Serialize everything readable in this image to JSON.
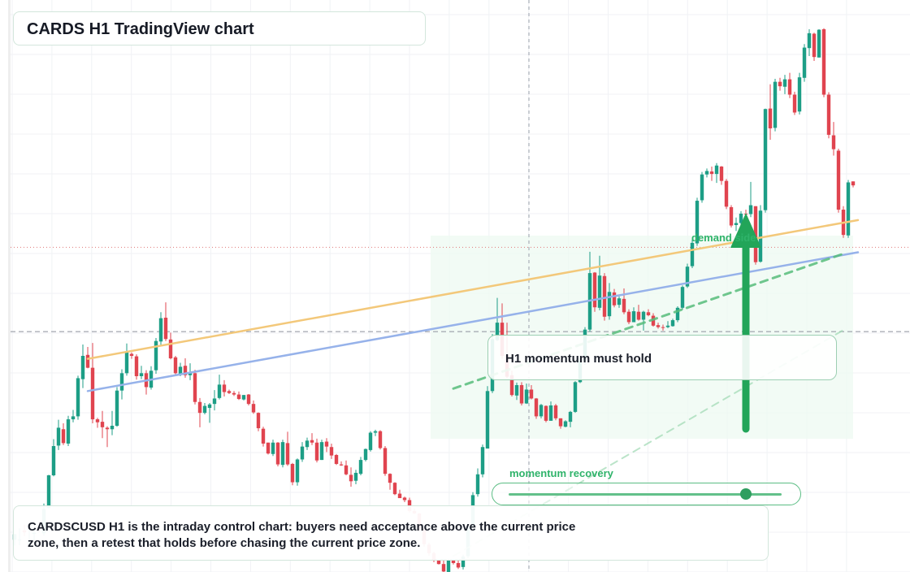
{
  "header": {
    "title": "CARDS H1 TradingView chart"
  },
  "callout": {
    "text": "H1 momentum must hold"
  },
  "summary": {
    "text": "CARDSCUSD H1 is the intraday control chart: buyers need acceptance above the current price zone, then a retest that holds before chasing the current price zone."
  },
  "labels": {
    "demand": "demand side",
    "momentum": "momentum recovery"
  },
  "momentum_slider": {
    "level": 0.87
  },
  "colors": {
    "up": "#1d9e86",
    "down": "#e0444f",
    "orange_line": "#f3c87a",
    "blue_line": "#96b2ea",
    "green_dash": "#57bd7c",
    "arrow": "#22a559"
  },
  "chart_data": {
    "type": "candlestick",
    "symbol": "CARDSCUSD",
    "timeframe": "H1",
    "grid": true,
    "price_range": [
      0,
      100
    ],
    "current_price_level": 49,
    "reference_level": 66,
    "ohlc": [
      [
        7.0,
        8.2,
        5.8,
        8.1
      ],
      [
        6.9,
        9.3,
        5.9,
        7.0
      ],
      [
        8.9,
        10.0,
        7.7,
        8.5
      ],
      [
        6.2,
        10.4,
        5.9,
        6.5
      ],
      [
        8.2,
        9.1,
        6.1,
        8.4
      ],
      [
        9.6,
        10.4,
        8.5,
        9.2
      ],
      [
        8.3,
        14.3,
        7.8,
        13.2
      ],
      [
        13.4,
        20.1,
        13.3,
        20.0
      ],
      [
        20.0,
        27.3,
        19.8,
        25.9
      ],
      [
        26.0,
        31.2,
        25.1,
        29.6
      ],
      [
        29.3,
        30.5,
        26.1,
        26.5
      ],
      [
        26.4,
        32.0,
        25.9,
        31.3
      ],
      [
        31.3,
        33.2,
        30.7,
        31.9
      ],
      [
        31.9,
        40.1,
        31.2,
        39.6
      ],
      [
        39.4,
        46.4,
        37.6,
        44.1
      ],
      [
        44.3,
        45.9,
        41.6,
        41.7
      ],
      [
        41.7,
        46.7,
        30.5,
        31.3
      ],
      [
        31.3,
        31.6,
        29.6,
        30.7
      ],
      [
        30.8,
        33.0,
        27.5,
        29.7
      ],
      [
        29.6,
        29.9,
        25.7,
        29.3
      ],
      [
        29.3,
        33.0,
        28.1,
        30.0
      ],
      [
        30.0,
        37.8,
        29.8,
        37.1
      ],
      [
        37.1,
        41.4,
        35.3,
        40.6
      ],
      [
        40.6,
        46.6,
        40.1,
        44.8
      ],
      [
        44.5,
        44.8,
        43.5,
        44.1
      ],
      [
        44.0,
        44.4,
        39.3,
        40.0
      ],
      [
        40.0,
        42.1,
        39.4,
        40.6
      ],
      [
        40.6,
        41.2,
        36.3,
        37.8
      ],
      [
        37.7,
        42.0,
        37.3,
        41.1
      ],
      [
        41.2,
        47.7,
        40.5,
        47.1
      ],
      [
        47.0,
        52.9,
        46.2,
        51.7
      ],
      [
        51.8,
        54.9,
        47.1,
        47.5
      ],
      [
        47.4,
        48.8,
        43.4,
        43.6
      ],
      [
        43.8,
        44.1,
        40.1,
        40.6
      ],
      [
        40.5,
        42.7,
        40.0,
        41.9
      ],
      [
        42.1,
        43.6,
        39.7,
        40.2
      ],
      [
        40.2,
        42.6,
        39.2,
        40.7
      ],
      [
        40.6,
        41.3,
        34.3,
        34.8
      ],
      [
        34.8,
        35.6,
        29.7,
        32.6
      ],
      [
        32.6,
        34.6,
        32.3,
        34.0
      ],
      [
        33.6,
        34.6,
        30.6,
        34.3
      ],
      [
        34.4,
        37.2,
        33.1,
        35.5
      ],
      [
        35.6,
        40.3,
        35.3,
        38.3
      ],
      [
        38.3,
        39.2,
        35.9,
        36.8
      ],
      [
        37.0,
        37.3,
        36.4,
        36.6
      ],
      [
        36.6,
        37.0,
        36.0,
        36.3
      ],
      [
        36.3,
        36.9,
        35.2,
        35.4
      ],
      [
        35.3,
        36.2,
        35.1,
        36.2
      ],
      [
        36.3,
        36.4,
        34.1,
        34.4
      ],
      [
        34.4,
        35.1,
        32.4,
        32.7
      ],
      [
        32.6,
        32.7,
        28.9,
        29.5
      ],
      [
        29.4,
        29.8,
        25.8,
        26.4
      ],
      [
        26.6,
        26.6,
        24.2,
        24.4
      ],
      [
        24.3,
        27.2,
        23.9,
        26.6
      ],
      [
        26.6,
        26.7,
        21.8,
        22.2
      ],
      [
        22.1,
        27.2,
        21.6,
        26.7
      ],
      [
        26.5,
        28.8,
        21.9,
        22.2
      ],
      [
        22.3,
        22.5,
        18.0,
        18.6
      ],
      [
        18.6,
        23.4,
        17.9,
        23.2
      ],
      [
        23.2,
        26.7,
        22.7,
        25.8
      ],
      [
        25.7,
        27.6,
        25.1,
        27.0
      ],
      [
        27.1,
        28.5,
        26.1,
        26.6
      ],
      [
        26.6,
        27.4,
        22.6,
        23.0
      ],
      [
        23.1,
        27.2,
        23.1,
        26.7
      ],
      [
        26.8,
        27.5,
        24.7,
        25.8
      ],
      [
        25.7,
        26.4,
        23.3,
        24.0
      ],
      [
        24.1,
        24.3,
        22.1,
        22.3
      ],
      [
        22.2,
        22.8,
        21.9,
        22.0
      ],
      [
        22.0,
        23.0,
        20.0,
        20.2
      ],
      [
        20.1,
        21.6,
        17.7,
        18.8
      ],
      [
        18.9,
        21.1,
        18.2,
        20.5
      ],
      [
        20.3,
        23.7,
        20.0,
        23.1
      ],
      [
        23.1,
        25.4,
        22.8,
        25.3
      ],
      [
        25.1,
        28.9,
        24.8,
        28.6
      ],
      [
        28.6,
        29.2,
        27.9,
        28.9
      ],
      [
        28.9,
        29.1,
        25.2,
        25.5
      ],
      [
        25.5,
        25.9,
        19.9,
        20.3
      ],
      [
        20.3,
        20.4,
        17.1,
        18.5
      ],
      [
        18.5,
        18.6,
        16.0,
        16.2
      ],
      [
        16.3,
        17.1,
        15.4,
        15.4
      ],
      [
        15.5,
        15.7,
        14.6,
        15.0
      ],
      [
        15.0,
        15.5,
        12.5,
        12.8
      ],
      [
        12.8,
        13.3,
        12.2,
        12.3
      ],
      [
        12.3,
        12.4,
        8.8,
        9.3
      ],
      [
        9.1,
        9.3,
        5.6,
        6.1
      ],
      [
        6.0,
        6.4,
        3.8,
        4.3
      ],
      [
        4.3,
        4.6,
        2.5,
        2.8
      ],
      [
        2.8,
        2.9,
        2.0,
        2.1
      ],
      [
        2.1,
        3.0,
        0.2,
        0.6
      ],
      [
        0.5,
        3.2,
        0.1,
        2.8
      ],
      [
        2.8,
        3.0,
        2.0,
        2.3
      ],
      [
        2.3,
        2.9,
        1.1,
        1.4
      ],
      [
        1.5,
        4.0,
        1.0,
        3.6
      ],
      [
        3.7,
        10.1,
        3.3,
        9.6
      ],
      [
        9.6,
        16.6,
        9.2,
        16.0
      ],
      [
        16.2,
        21.4,
        15.7,
        20.2
      ],
      [
        20.2,
        26.2,
        19.6,
        25.7
      ],
      [
        25.4,
        38.0,
        25.4,
        37.0
      ],
      [
        37.0,
        48.5,
        36.6,
        47.5
      ],
      [
        47.3,
        55.8,
        47.1,
        50.8
      ],
      [
        50.8,
        54.7,
        43.5,
        44.1
      ],
      [
        44.3,
        50.8,
        39.6,
        39.9
      ],
      [
        40.2,
        41.1,
        35.9,
        36.2
      ],
      [
        36.1,
        38.7,
        35.2,
        38.2
      ],
      [
        38.2,
        38.8,
        34.1,
        34.5
      ],
      [
        34.5,
        38.5,
        34.4,
        37.3
      ],
      [
        37.3,
        38.2,
        35.3,
        35.5
      ],
      [
        35.5,
        35.6,
        31.4,
        31.9
      ],
      [
        31.9,
        34.4,
        31.5,
        34.2
      ],
      [
        34.0,
        34.1,
        30.7,
        31.0
      ],
      [
        31.0,
        34.9,
        31.1,
        34.1
      ],
      [
        34.1,
        34.4,
        31.1,
        31.5
      ],
      [
        31.5,
        31.5,
        29.4,
        29.9
      ],
      [
        29.8,
        31.1,
        29.7,
        30.9
      ],
      [
        30.8,
        33.0,
        29.7,
        32.8
      ],
      [
        32.8,
        39.0,
        32.6,
        38.8
      ],
      [
        38.8,
        43.6,
        38.6,
        43.1
      ],
      [
        43.1,
        49.9,
        42.3,
        49.4
      ],
      [
        49.4,
        65.1,
        49.0,
        60.8
      ],
      [
        60.9,
        61.0,
        53.0,
        53.9
      ],
      [
        53.8,
        64.3,
        53.3,
        60.3
      ],
      [
        60.2,
        60.8,
        51.2,
        52.0
      ],
      [
        52.1,
        58.8,
        51.4,
        57.0
      ],
      [
        56.9,
        57.6,
        53.9,
        54.3
      ],
      [
        54.4,
        56.1,
        53.8,
        55.7
      ],
      [
        55.6,
        57.7,
        52.5,
        52.9
      ],
      [
        53.0,
        53.5,
        50.5,
        50.9
      ],
      [
        50.9,
        53.9,
        50.9,
        53.1
      ],
      [
        53.0,
        54.4,
        51.2,
        51.4
      ],
      [
        51.4,
        53.2,
        49.2,
        53.0
      ],
      [
        52.9,
        53.5,
        52.1,
        52.3
      ],
      [
        52.2,
        52.7,
        50.0,
        50.2
      ],
      [
        50.3,
        50.8,
        49.6,
        49.9
      ],
      [
        49.9,
        50.4,
        49.2,
        49.8
      ],
      [
        49.9,
        51.1,
        49.7,
        50.2
      ],
      [
        50.1,
        51.6,
        50.0,
        51.3
      ],
      [
        51.3,
        54.1,
        50.9,
        53.8
      ],
      [
        53.8,
        58.3,
        53.4,
        58.0
      ],
      [
        58.1,
        62.7,
        57.8,
        62.1
      ],
      [
        62.2,
        67.6,
        61.8,
        66.9
      ],
      [
        66.8,
        76.0,
        66.3,
        75.4
      ],
      [
        75.5,
        81.2,
        75.0,
        80.7
      ],
      [
        80.7,
        81.9,
        80.1,
        81.4
      ],
      [
        81.3,
        82.3,
        79.4,
        80.8
      ],
      [
        80.8,
        83.0,
        79.0,
        82.5
      ],
      [
        82.3,
        82.4,
        78.6,
        79.4
      ],
      [
        79.4,
        79.8,
        73.7,
        74.2
      ],
      [
        74.1,
        74.5,
        70.0,
        70.4
      ],
      [
        70.5,
        72.0,
        69.3,
        70.9
      ],
      [
        70.9,
        73.3,
        70.4,
        72.8
      ],
      [
        72.8,
        73.6,
        70.6,
        72.7
      ],
      [
        72.7,
        79.2,
        72.1,
        74.5
      ],
      [
        74.3,
        74.3,
        62.5,
        63.0
      ],
      [
        63.1,
        74.5,
        62.9,
        73.4
      ],
      [
        73.5,
        94.0,
        73.0,
        93.9
      ],
      [
        94.0,
        98.9,
        87.7,
        90.0
      ],
      [
        90.1,
        100.0,
        89.4,
        99.4
      ],
      [
        99.4,
        100.2,
        97.6,
        98.5
      ],
      [
        98.4,
        100.8,
        96.9,
        99.9
      ],
      [
        99.9,
        101.2,
        96.1,
        96.8
      ],
      [
        96.8,
        97.4,
        92.7,
        93.2
      ],
      [
        93.4,
        101.2,
        92.8,
        100.3
      ],
      [
        100.2,
        107.0,
        99.4,
        106.3
      ],
      [
        106.2,
        110.0,
        104.6,
        109.2
      ],
      [
        109.1,
        109.3,
        103.6,
        104.4
      ],
      [
        104.3,
        110.0,
        104.3,
        109.9
      ],
      [
        110.0,
        110.2,
        96.3,
        96.8
      ],
      [
        96.8,
        97.3,
        88.0,
        88.7
      ],
      [
        88.6,
        91.3,
        84.5,
        85.8
      ],
      [
        85.5,
        85.9,
        73.0,
        73.6
      ],
      [
        73.6,
        74.3,
        67.9,
        68.5
      ],
      [
        68.4,
        79.6,
        67.9,
        79.1
      ],
      [
        79.3,
        79.3,
        78.1,
        78.5
      ]
    ],
    "trendlines": [
      {
        "color": "orange",
        "from": [
          15,
          43.5
        ],
        "to": [
          173,
          71.5
        ]
      },
      {
        "color": "blue",
        "from": [
          15,
          37.0
        ],
        "to": [
          173,
          65.0
        ]
      },
      {
        "color": "green-dashed",
        "from": [
          90,
          37.5
        ],
        "to": [
          170,
          64.7
        ]
      },
      {
        "color": "green-dashed-faint",
        "from": [
          90,
          3.7
        ],
        "to": [
          170,
          49.3
        ]
      }
    ]
  }
}
